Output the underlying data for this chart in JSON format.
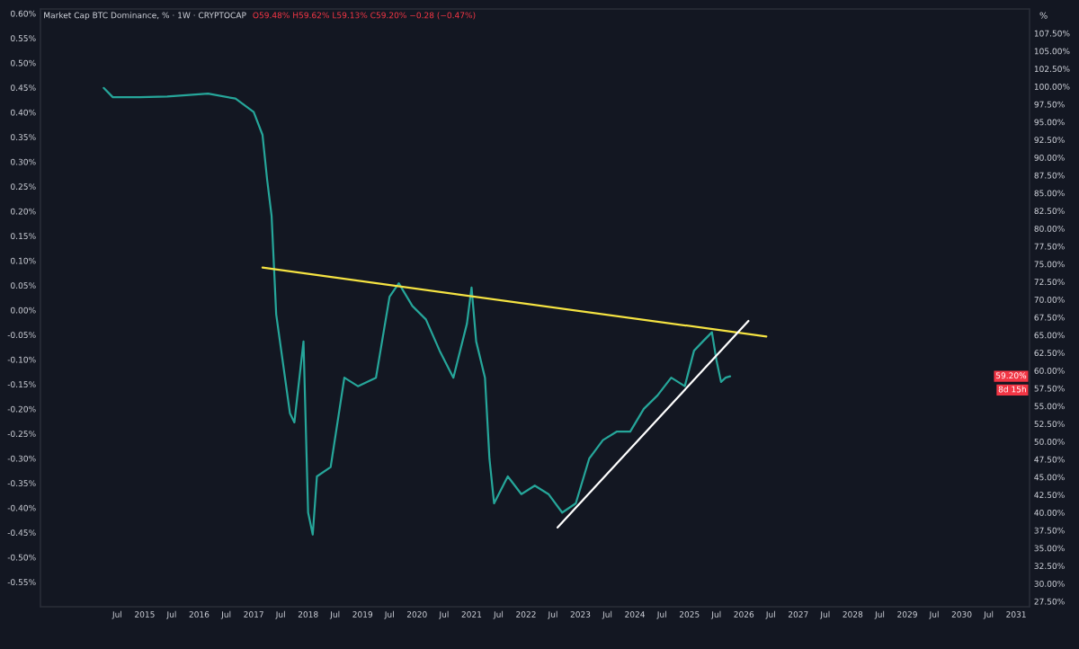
{
  "chart_data": {
    "type": "line",
    "title": "Market Cap BTC Dominance, % · 1W · CRYPTOCAP",
    "subtitle": "O59.48% H59.62% L59.13% C59.20% −0.28 (−0.47%)",
    "y2label": "%",
    "xlim": [
      "2013-02",
      "2031-04"
    ],
    "xticks": [
      {
        "value": "2014-07",
        "label": "Jul"
      },
      {
        "value": "2015-01",
        "label": "2015"
      },
      {
        "value": "2015-07",
        "label": "Jul"
      },
      {
        "value": "2016-01",
        "label": "2016"
      },
      {
        "value": "2016-07",
        "label": "Jul"
      },
      {
        "value": "2017-01",
        "label": "2017"
      },
      {
        "value": "2017-07",
        "label": "Jul"
      },
      {
        "value": "2018-01",
        "label": "2018"
      },
      {
        "value": "2018-07",
        "label": "Jul"
      },
      {
        "value": "2019-01",
        "label": "2019"
      },
      {
        "value": "2019-07",
        "label": "Jul"
      },
      {
        "value": "2020-01",
        "label": "2020"
      },
      {
        "value": "2020-07",
        "label": "Jul"
      },
      {
        "value": "2021-01",
        "label": "2021"
      },
      {
        "value": "2021-07",
        "label": "Jul"
      },
      {
        "value": "2022-01",
        "label": "2022"
      },
      {
        "value": "2022-07",
        "label": "Jul"
      },
      {
        "value": "2023-01",
        "label": "2023"
      },
      {
        "value": "2023-07",
        "label": "Jul"
      },
      {
        "value": "2024-01",
        "label": "2024"
      },
      {
        "value": "2024-07",
        "label": "Jul"
      },
      {
        "value": "2025-01",
        "label": "2025"
      },
      {
        "value": "2025-07",
        "label": "Jul"
      },
      {
        "value": "2026-01",
        "label": "2026"
      },
      {
        "value": "2026-07",
        "label": "Jul"
      },
      {
        "value": "2027-01",
        "label": "2027"
      },
      {
        "value": "2027-07",
        "label": "Jul"
      },
      {
        "value": "2028-01",
        "label": "2028"
      },
      {
        "value": "2028-07",
        "label": "Jul"
      },
      {
        "value": "2029-01",
        "label": "2029"
      },
      {
        "value": "2029-07",
        "label": "Jul"
      },
      {
        "value": "2030-01",
        "label": "2030"
      },
      {
        "value": "2030-07",
        "label": "Jul"
      },
      {
        "value": "2031-01",
        "label": "2031"
      }
    ],
    "ylim": [
      -0.6,
      0.609
    ],
    "yticks": [
      {
        "value": 0.6,
        "label": "0.60%"
      },
      {
        "value": 0.55,
        "label": "0.55%"
      },
      {
        "value": 0.5,
        "label": "0.50%"
      },
      {
        "value": 0.45,
        "label": "0.45%"
      },
      {
        "value": 0.4,
        "label": "0.40%"
      },
      {
        "value": 0.35,
        "label": "0.35%"
      },
      {
        "value": 0.3,
        "label": "0.30%"
      },
      {
        "value": 0.25,
        "label": "0.25%"
      },
      {
        "value": 0.2,
        "label": "0.20%"
      },
      {
        "value": 0.15,
        "label": "0.15%"
      },
      {
        "value": 0.1,
        "label": "0.10%"
      },
      {
        "value": 0.05,
        "label": "0.05%"
      },
      {
        "value": 0,
        "label": "0.00%"
      },
      {
        "value": -0.05,
        "label": "-0.05%"
      },
      {
        "value": -0.1,
        "label": "-0.10%"
      },
      {
        "value": -0.15,
        "label": "-0.15%"
      },
      {
        "value": -0.2,
        "label": "-0.20%"
      },
      {
        "value": -0.25,
        "label": "-0.25%"
      },
      {
        "value": -0.3,
        "label": "-0.30%"
      },
      {
        "value": -0.35,
        "label": "-0.35%"
      },
      {
        "value": -0.4,
        "label": "-0.40%"
      },
      {
        "value": -0.45,
        "label": "-0.45%"
      },
      {
        "value": -0.5,
        "label": "-0.50%"
      },
      {
        "value": -0.55,
        "label": "-0.55%"
      }
    ],
    "y2lim": [
      26.74,
      110.92
    ],
    "y2ticks": [
      {
        "value": 107.5,
        "label": "107.50%"
      },
      {
        "value": 105,
        "label": "105.00%"
      },
      {
        "value": 102.5,
        "label": "102.50%"
      },
      {
        "value": 100,
        "label": "100.00%"
      },
      {
        "value": 97.5,
        "label": "97.50%"
      },
      {
        "value": 95,
        "label": "95.00%"
      },
      {
        "value": 92.5,
        "label": "92.50%"
      },
      {
        "value": 90,
        "label": "90.00%"
      },
      {
        "value": 87.5,
        "label": "87.50%"
      },
      {
        "value": 85,
        "label": "85.00%"
      },
      {
        "value": 82.5,
        "label": "82.50%"
      },
      {
        "value": 80,
        "label": "80.00%"
      },
      {
        "value": 77.5,
        "label": "77.50%"
      },
      {
        "value": 75,
        "label": "75.00%"
      },
      {
        "value": 72.5,
        "label": "72.50%"
      },
      {
        "value": 70,
        "label": "70.00%"
      },
      {
        "value": 67.5,
        "label": "67.50%"
      },
      {
        "value": 65,
        "label": "65.00%"
      },
      {
        "value": 62.5,
        "label": "62.50%"
      },
      {
        "value": 60,
        "label": "60.00%"
      },
      {
        "value": 57.5,
        "label": "57.50%"
      },
      {
        "value": 55,
        "label": "55.00%"
      },
      {
        "value": 52.5,
        "label": "52.50%"
      },
      {
        "value": 50,
        "label": "50.00%"
      },
      {
        "value": 47.5,
        "label": "47.50%"
      },
      {
        "value": 45,
        "label": "45.00%"
      },
      {
        "value": 42.5,
        "label": "42.50%"
      },
      {
        "value": 40,
        "label": "40.00%"
      },
      {
        "value": 37.5,
        "label": "37.50%"
      },
      {
        "value": 35,
        "label": "35.00%"
      },
      {
        "value": 32.5,
        "label": "32.50%"
      },
      {
        "value": 30,
        "label": "30.00%"
      },
      {
        "value": 27.5,
        "label": "27.50%"
      }
    ],
    "series": [
      {
        "axis": "y2",
        "color": "#26a69a",
        "x": [
          "2014-04",
          "2014-06",
          "2014-12",
          "2015-06",
          "2016-03",
          "2016-09",
          "2017-01",
          "2017-03",
          "2017-04",
          "2017-05",
          "2017-06",
          "2017-09",
          "2017-10",
          "2017-12",
          "2018-01",
          "2018-02",
          "2018-03",
          "2018-06",
          "2018-09",
          "2018-12",
          "2019-04",
          "2019-07",
          "2019-09",
          "2019-12",
          "2020-03",
          "2020-06",
          "2020-09",
          "2020-12",
          "2021-01",
          "2021-02",
          "2021-04",
          "2021-05",
          "2021-06",
          "2021-09",
          "2021-12",
          "2022-03",
          "2022-06",
          "2022-09",
          "2022-12",
          "2023-03",
          "2023-06",
          "2023-09",
          "2023-12",
          "2024-03",
          "2024-06",
          "2024-09",
          "2024-12",
          "2025-02",
          "2025-04",
          "2025-06",
          "2025-07",
          "2025-08",
          "2025-09",
          "2025-10"
        ],
        "values": [
          99.8,
          98.5,
          98.5,
          98.6,
          99.0,
          98.3,
          96.4,
          93.2,
          86.9,
          81.8,
          67.9,
          54.0,
          52.7,
          64.1,
          40.0,
          36.9,
          45.1,
          46.4,
          59.0,
          57.8,
          59.0,
          70.4,
          72.3,
          69.1,
          67.2,
          62.8,
          59.0,
          66.6,
          71.7,
          64.1,
          59.0,
          47.6,
          41.3,
          45.1,
          42.6,
          43.8,
          42.6,
          40.0,
          41.3,
          47.6,
          50.2,
          51.4,
          51.4,
          54.6,
          56.5,
          59.0,
          57.8,
          62.8,
          64.1,
          65.4,
          61.5,
          58.4,
          59.0,
          59.2
        ]
      },
      {
        "axis": "y2",
        "color": "#f5e342",
        "x": [
          "2017-03",
          "2026-06"
        ],
        "values": [
          74.5,
          64.8
        ]
      },
      {
        "axis": "y2",
        "color": "#ffffff",
        "x": [
          "2022-08",
          "2026-02"
        ],
        "values": [
          37.9,
          67.0
        ]
      }
    ],
    "annotations": [
      "59.20%",
      "8d 15h"
    ],
    "grid": false,
    "legend": false,
    "marker": "none",
    "line_style": "solid"
  }
}
